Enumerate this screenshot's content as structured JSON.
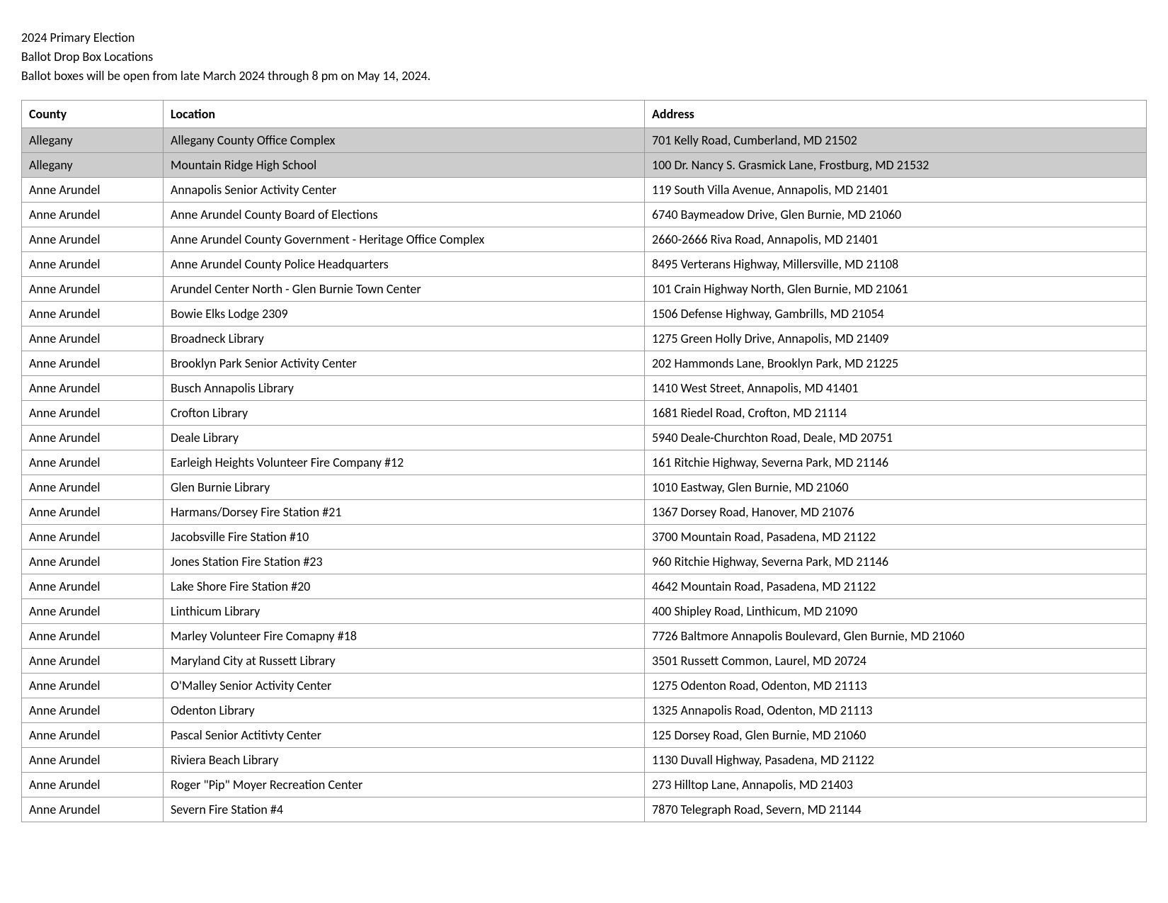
{
  "header": {
    "line1": "2024 Primary Election",
    "line2": "Ballot Drop Box Locations",
    "line3": "Ballot boxes will be open from late March 2024 through 8 pm on May 14, 2024."
  },
  "table": {
    "columns": [
      "County",
      "Location",
      "Address"
    ],
    "rows": [
      {
        "county": "Allegany",
        "location": "Allegany County Office Complex",
        "address": "701 Kelly Road, Cumberland, MD 21502",
        "highlighted": true
      },
      {
        "county": "Allegany",
        "location": "Mountain Ridge High School",
        "address": "100 Dr. Nancy S. Grasmick Lane, Frostburg, MD 21532",
        "highlighted": true
      },
      {
        "county": "Anne Arundel",
        "location": "Annapolis Senior Activity Center",
        "address": "119 South Villa Avenue, Annapolis, MD 21401",
        "highlighted": false
      },
      {
        "county": "Anne Arundel",
        "location": "Anne Arundel County Board of Elections",
        "address": "6740 Baymeadow Drive, Glen Burnie, MD 21060",
        "highlighted": false
      },
      {
        "county": "Anne Arundel",
        "location": "Anne Arundel County Government - Heritage Office Complex",
        "address": "2660-2666 Riva Road, Annapolis, MD 21401",
        "highlighted": false
      },
      {
        "county": "Anne Arundel",
        "location": "Anne Arundel County Police Headquarters",
        "address": "8495 Verterans Highway, Millersville, MD 21108",
        "highlighted": false
      },
      {
        "county": "Anne Arundel",
        "location": "Arundel Center North - Glen Burnie Town Center",
        "address": "101 Crain Highway North, Glen Burnie, MD 21061",
        "highlighted": false
      },
      {
        "county": "Anne Arundel",
        "location": "Bowie Elks Lodge 2309",
        "address": "1506 Defense Highway, Gambrills, MD 21054",
        "highlighted": false
      },
      {
        "county": "Anne Arundel",
        "location": "Broadneck Library",
        "address": "1275 Green Holly Drive, Annapolis, MD 21409",
        "highlighted": false
      },
      {
        "county": "Anne Arundel",
        "location": "Brooklyn Park Senior Activity Center",
        "address": "202 Hammonds Lane, Brooklyn Park, MD 21225",
        "highlighted": false
      },
      {
        "county": "Anne Arundel",
        "location": "Busch Annapolis Library",
        "address": "1410 West Street, Annapolis, MD 41401",
        "highlighted": false
      },
      {
        "county": "Anne Arundel",
        "location": "Crofton Library",
        "address": "1681 Riedel Road, Crofton, MD 21114",
        "highlighted": false
      },
      {
        "county": "Anne Arundel",
        "location": "Deale Library",
        "address": "5940 Deale-Churchton Road, Deale, MD 20751",
        "highlighted": false
      },
      {
        "county": "Anne Arundel",
        "location": "Earleigh Heights Volunteer Fire Company #12",
        "address": "161 Ritchie Highway, Severna Park, MD 21146",
        "highlighted": false
      },
      {
        "county": "Anne Arundel",
        "location": "Glen Burnie Library",
        "address": "1010 Eastway, Glen Burnie, MD 21060",
        "highlighted": false
      },
      {
        "county": "Anne Arundel",
        "location": "Harmans/Dorsey Fire Station #21",
        "address": "1367 Dorsey Road, Hanover, MD 21076",
        "highlighted": false
      },
      {
        "county": "Anne Arundel",
        "location": "Jacobsville Fire Station #10",
        "address": "3700 Mountain Road, Pasadena, MD 21122",
        "highlighted": false
      },
      {
        "county": "Anne Arundel",
        "location": "Jones Station Fire Station #23",
        "address": "960 Ritchie Highway, Severna Park, MD 21146",
        "highlighted": false
      },
      {
        "county": "Anne Arundel",
        "location": "Lake Shore Fire Station #20",
        "address": "4642 Mountain Road, Pasadena, MD 21122",
        "highlighted": false
      },
      {
        "county": "Anne Arundel",
        "location": "Linthicum Library",
        "address": "400 Shipley Road, Linthicum, MD 21090",
        "highlighted": false
      },
      {
        "county": "Anne Arundel",
        "location": "Marley Volunteer Fire Comapny #18",
        "address": "7726 Baltmore Annapolis Boulevard, Glen Burnie, MD 21060",
        "highlighted": false
      },
      {
        "county": "Anne Arundel",
        "location": "Maryland City at Russett Library",
        "address": "3501 Russett Common, Laurel, MD 20724",
        "highlighted": false
      },
      {
        "county": "Anne Arundel",
        "location": "O'Malley Senior Activity Center",
        "address": "1275 Odenton Road, Odenton, MD 21113",
        "highlighted": false
      },
      {
        "county": "Anne Arundel",
        "location": "Odenton Library",
        "address": "1325 Annapolis Road, Odenton, MD 21113",
        "highlighted": false
      },
      {
        "county": "Anne Arundel",
        "location": "Pascal Senior Actitivty Center",
        "address": "125 Dorsey Road, Glen Burnie, MD 21060",
        "highlighted": false
      },
      {
        "county": "Anne Arundel",
        "location": "Riviera Beach Library",
        "address": "1130 Duvall Highway, Pasadena, MD 21122",
        "highlighted": false
      },
      {
        "county": "Anne Arundel",
        "location": "Roger \"Pip\" Moyer Recreation Center",
        "address": "273 Hilltop Lane, Annapolis, MD 21403",
        "highlighted": false
      },
      {
        "county": "Anne Arundel",
        "location": "Severn Fire Station #4",
        "address": "7870 Telegraph Road, Severn, MD 21144",
        "highlighted": false
      }
    ]
  }
}
